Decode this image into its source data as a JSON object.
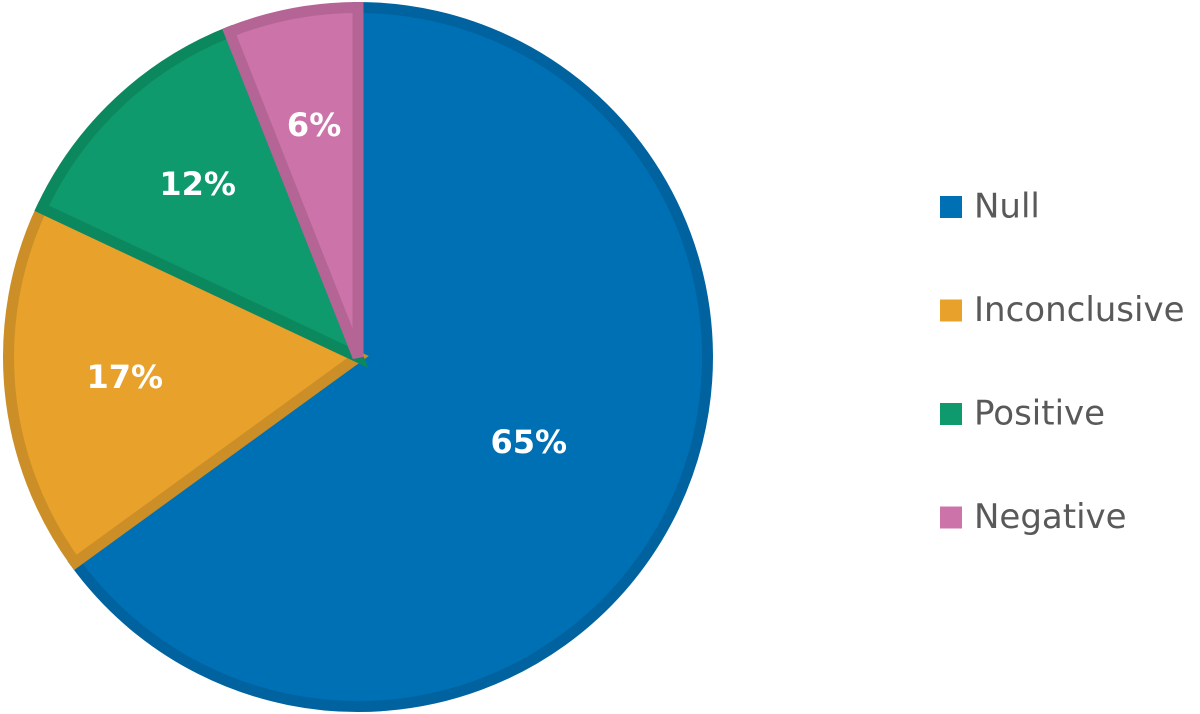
{
  "chart_data": {
    "type": "pie",
    "categories": [
      "Null",
      "Inconclusive",
      "Positive",
      "Negative"
    ],
    "values": [
      65,
      17,
      12,
      6
    ],
    "value_labels": [
      "65%",
      "17%",
      "12%",
      "6%"
    ],
    "colors": [
      "#0070b5",
      "#e8a12b",
      "#0e9a6c",
      "#cc73aa"
    ],
    "legend": "right"
  }
}
